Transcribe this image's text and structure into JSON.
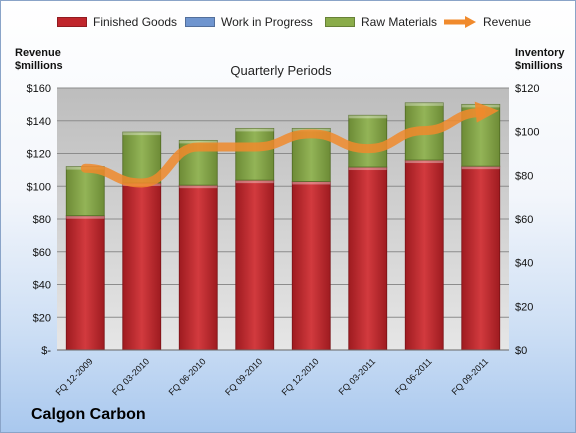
{
  "company": "Calgon Carbon",
  "left_axis_title": [
    "Revenue",
    "$millions"
  ],
  "right_axis_title": [
    "Inventory",
    "$millions"
  ],
  "chart_data": {
    "type": "bar",
    "stacked": true,
    "title": "Quarterly Periods",
    "categories": [
      "FQ 12-2009",
      "FQ 03-2010",
      "FQ 06-2010",
      "FQ 09-2010",
      "FQ 12-2010",
      "FQ 03-2011",
      "FQ 06-2011",
      "FQ 09-2011"
    ],
    "bar_axis": "right",
    "series": [
      {
        "name": "Finished Goods",
        "values": [
          61.5,
          76.5,
          75.5,
          77.8,
          77.2,
          83.8,
          87.0,
          84.2
        ],
        "color": "#c0262c"
      },
      {
        "name": "Work in Progress",
        "values": [
          0,
          0,
          0,
          0,
          0,
          0,
          0,
          0
        ],
        "color": "#6f95cf"
      },
      {
        "name": "Raw Materials",
        "values": [
          22.5,
          23.3,
          20.5,
          23.7,
          24.3,
          23.7,
          26.2,
          28.3
        ],
        "color": "#8aac4a"
      }
    ],
    "line_series": {
      "name": "Revenue",
      "axis": "left",
      "values": [
        111,
        102,
        124,
        124,
        132,
        123,
        134,
        145
      ],
      "color": "#f08a2c"
    },
    "left_axis": {
      "range": [
        0,
        160
      ],
      "ticks": [
        "$-",
        "$20",
        "$40",
        "$60",
        "$80",
        "$100",
        "$120",
        "$140",
        "$160"
      ]
    },
    "right_axis": {
      "range": [
        0,
        120
      ],
      "ticks": [
        "$0",
        "$20",
        "$40",
        "$60",
        "$80",
        "$100",
        "$120"
      ]
    },
    "grid": true,
    "legend_placement": "top"
  }
}
